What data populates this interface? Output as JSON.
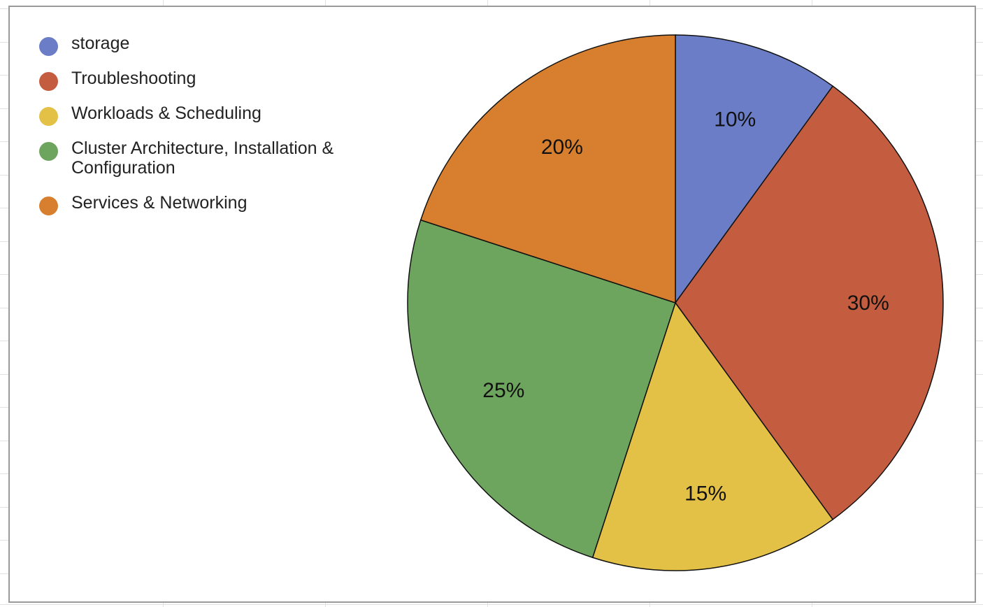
{
  "chart_data": {
    "type": "pie",
    "title": "",
    "legend_position": "left",
    "categories": [
      "storage",
      "Troubleshooting",
      "Workloads & Scheduling",
      "Cluster Architecture, Installation & Configuration",
      "Services & Networking"
    ],
    "values": [
      10,
      30,
      15,
      25,
      20
    ],
    "labels": [
      "10%",
      "30%",
      "15%",
      "25%",
      "20%"
    ],
    "colors": [
      "#6a7dc6",
      "#c45d40",
      "#e3c046",
      "#6ea55e",
      "#d77f2e"
    ],
    "start_angle": "12 o'clock",
    "direction": "clockwise"
  },
  "legend": {
    "items": [
      {
        "label": "storage",
        "color": "#6a7dc6"
      },
      {
        "label": "Troubleshooting",
        "color": "#c45d40"
      },
      {
        "label": "Workloads & Scheduling",
        "color": "#e3c046"
      },
      {
        "label": "Cluster Architecture, Installation & Configuration",
        "color": "#6ea55e"
      },
      {
        "label": "Services & Networking",
        "color": "#d77f2e"
      }
    ]
  }
}
